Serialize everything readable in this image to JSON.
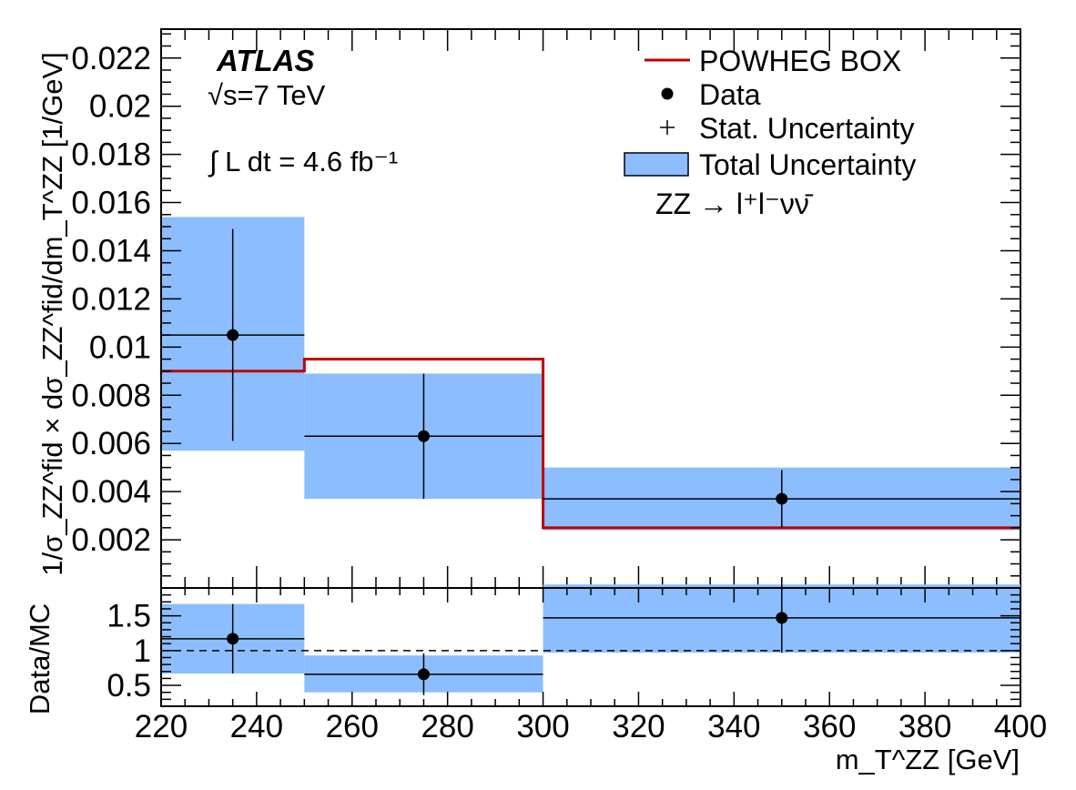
{
  "chart_data": [
    {
      "type": "histogram",
      "panel": "main",
      "bin_edges": [
        220,
        250,
        300,
        400
      ],
      "x": [
        235,
        275,
        350
      ],
      "series": [
        {
          "name": "Data",
          "values": [
            0.0105,
            0.0063,
            0.0037
          ],
          "stat_error": [
            0.0044,
            0.0026,
            0.0012
          ],
          "total_band_low": [
            0.0057,
            0.0037,
            0.0024
          ],
          "total_band_high": [
            0.0154,
            0.0089,
            0.005
          ]
        },
        {
          "name": "POWHEG BOX",
          "values": [
            0.009,
            0.0095,
            0.0025
          ],
          "color": "#c00000"
        }
      ],
      "legend": {
        "entries": [
          "POWHEG BOX",
          "Data",
          "Stat. Uncertainty",
          "Total Uncertainty"
        ],
        "placement": "top-right"
      },
      "experiment": "ATLAS",
      "energy_label": "√s=7 TeV",
      "lumi_label": "∫ L dt = 4.6 fb⁻¹",
      "channel_label": "ZZ → l⁺l⁻νν̄",
      "ylabel": "1/σ_ZZ^fid × dσ_ZZ^fid/dm_T^ZZ [1/GeV]",
      "xlim": [
        220,
        400
      ],
      "ylim": [
        0,
        0.0232
      ],
      "y_ticks": [
        "0.002",
        "0.004",
        "0.006",
        "0.008",
        "0.01",
        "0.012",
        "0.014",
        "0.016",
        "0.018",
        "0.02",
        "0.022"
      ],
      "band_color": "#8cbeff"
    },
    {
      "type": "ratio",
      "panel": "ratio",
      "bin_edges": [
        220,
        250,
        300,
        400
      ],
      "x": [
        235,
        275,
        350
      ],
      "values": [
        1.17,
        0.66,
        1.47
      ],
      "stat_error": [
        0.5,
        0.3,
        0.5
      ],
      "band_low": [
        0.67,
        0.4,
        0.97
      ],
      "band_high": [
        1.67,
        0.93,
        1.95
      ],
      "reference": 1,
      "ylabel": "Data/MC",
      "ylim": [
        0.2,
        1.9
      ],
      "y_ticks": [
        "0.5",
        "1",
        "1.5"
      ],
      "x_ticks": [
        "220",
        "240",
        "260",
        "280",
        "300",
        "320",
        "340",
        "360",
        "380",
        "400"
      ],
      "xlabel": "m_T^ZZ [GeV]"
    }
  ]
}
